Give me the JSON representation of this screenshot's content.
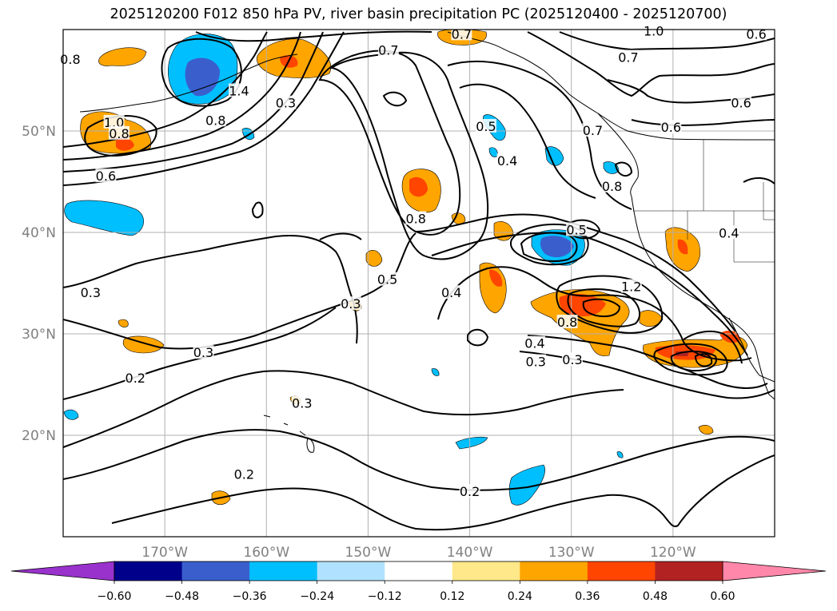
{
  "title": "2025120200 F012 850 hPa PV, river basin precipitation PC (2025120400 - 2025120700)",
  "map": {
    "projection": "PlateCarree",
    "lon_range": [
      -180,
      -110
    ],
    "lat_range": [
      10,
      60
    ],
    "lat_ticks": [
      {
        "value": 50,
        "label": "50°N"
      },
      {
        "value": 40,
        "label": "40°N"
      },
      {
        "value": 30,
        "label": "30°N"
      },
      {
        "value": 20,
        "label": "20°N"
      }
    ],
    "lon_ticks": [
      {
        "value": -170,
        "label": "170°W"
      },
      {
        "value": -160,
        "label": "160°W"
      },
      {
        "value": -150,
        "label": "150°W"
      },
      {
        "value": -140,
        "label": "140°W"
      },
      {
        "value": -130,
        "label": "130°W"
      },
      {
        "value": -120,
        "label": "120°W"
      }
    ],
    "gridlines": true,
    "axis_label_color": "#808080",
    "contour_labels": [
      {
        "text": "1.0",
        "lon": -175.0,
        "lat": 50.8
      },
      {
        "text": "0.8",
        "lon": -174.5,
        "lat": 49.7
      },
      {
        "text": "0.8",
        "lon": -165.0,
        "lat": 51.0
      },
      {
        "text": "1.4",
        "lon": -162.7,
        "lat": 53.9
      },
      {
        "text": "0.3",
        "lon": -158.1,
        "lat": 52.7
      },
      {
        "text": "0.6",
        "lon": -175.8,
        "lat": 45.5
      },
      {
        "text": "0.8",
        "lon": -179.3,
        "lat": 57.0
      },
      {
        "text": "0.7",
        "lon": -148.0,
        "lat": 57.9
      },
      {
        "text": "0.7",
        "lon": -140.8,
        "lat": 59.5
      },
      {
        "text": "1.0",
        "lon": -121.9,
        "lat": 59.8
      },
      {
        "text": "0.7",
        "lon": -124.4,
        "lat": 57.2
      },
      {
        "text": "0.6",
        "lon": -111.8,
        "lat": 59.5
      },
      {
        "text": "0.6",
        "lon": -113.3,
        "lat": 52.7
      },
      {
        "text": "0.6",
        "lon": -120.2,
        "lat": 50.3
      },
      {
        "text": "0.7",
        "lon": -127.9,
        "lat": 50.0
      },
      {
        "text": "0.8",
        "lon": -126.0,
        "lat": 44.5
      },
      {
        "text": "0.5",
        "lon": -138.4,
        "lat": 50.4
      },
      {
        "text": "0.4",
        "lon": -136.3,
        "lat": 47.0
      },
      {
        "text": "0.8",
        "lon": -145.3,
        "lat": 41.3
      },
      {
        "text": "0.5",
        "lon": -129.5,
        "lat": 40.2
      },
      {
        "text": "0.4",
        "lon": -114.5,
        "lat": 39.9
      },
      {
        "text": "0.3",
        "lon": -177.3,
        "lat": 34.0
      },
      {
        "text": "0.5",
        "lon": -148.1,
        "lat": 35.3
      },
      {
        "text": "0.3",
        "lon": -151.7,
        "lat": 32.9
      },
      {
        "text": "0.4",
        "lon": -141.8,
        "lat": 34.0
      },
      {
        "text": "1.2",
        "lon": -124.1,
        "lat": 34.6
      },
      {
        "text": "0.8",
        "lon": -130.4,
        "lat": 31.1
      },
      {
        "text": "0.4",
        "lon": -133.6,
        "lat": 29.0
      },
      {
        "text": "0.3",
        "lon": -133.5,
        "lat": 27.2
      },
      {
        "text": "0.3",
        "lon": -129.9,
        "lat": 27.4
      },
      {
        "text": "0.3",
        "lon": -166.2,
        "lat": 28.1
      },
      {
        "text": "0.2",
        "lon": -172.9,
        "lat": 25.6
      },
      {
        "text": "0.3",
        "lon": -156.5,
        "lat": 23.1
      },
      {
        "text": "0.2",
        "lon": -162.2,
        "lat": 16.1
      },
      {
        "text": "0.2",
        "lon": -140.0,
        "lat": 14.4
      }
    ]
  },
  "colorbar": {
    "extend": "both",
    "levels": [
      -0.6,
      -0.48,
      -0.36,
      -0.24,
      -0.12,
      0.12,
      0.24,
      0.36,
      0.48,
      0.6
    ],
    "tick_labels": [
      "−0.60",
      "−0.48",
      "−0.36",
      "−0.24",
      "−0.12",
      "0.12",
      "0.24",
      "0.36",
      "0.48",
      "0.60"
    ],
    "colors": [
      "#9932CC",
      "#00008B",
      "#3A5FCD",
      "#00BFFF",
      "#B0E2FF",
      "#FFFFFF",
      "#FFE88A",
      "#FFA500",
      "#FF4500",
      "#B22222",
      "#FF88AA"
    ]
  }
}
